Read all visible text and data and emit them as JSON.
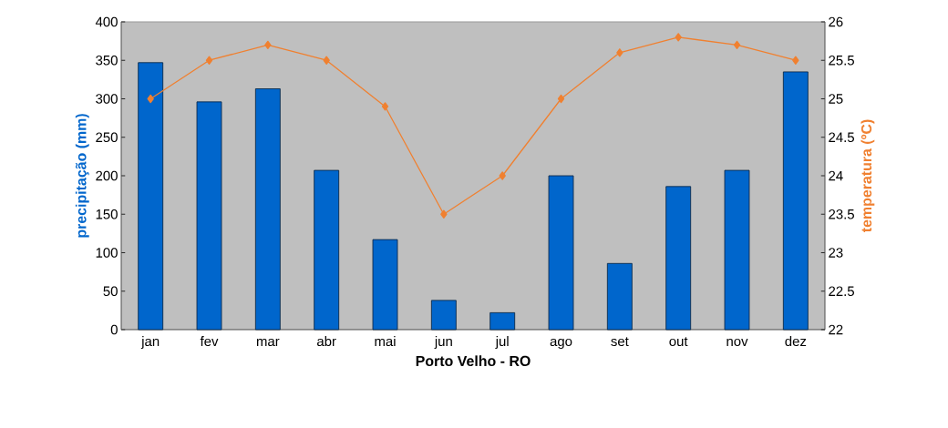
{
  "chart_data": {
    "type": "bar",
    "xlabel": "Porto Velho - RO",
    "ylabel": "precipitação (mm)",
    "y2label": "temperatura (ºC)",
    "categories": [
      "jan",
      "fev",
      "mar",
      "abr",
      "mai",
      "jun",
      "jul",
      "ago",
      "set",
      "out",
      "nov",
      "dez"
    ],
    "series": [
      {
        "color": "#0066cc",
        "values": [
          347,
          296,
          313,
          207,
          117,
          38,
          22,
          200,
          86,
          186,
          207,
          335
        ]
      },
      {
        "type": "line",
        "axis": "y2",
        "color": "#f08030",
        "values": [
          25.0,
          25.5,
          25.7,
          25.5,
          24.9,
          23.5,
          24.0,
          25.0,
          25.6,
          25.8,
          25.7,
          25.5
        ]
      }
    ],
    "ylim": [
      0,
      400
    ],
    "yticks": [
      0,
      50,
      100,
      150,
      200,
      250,
      300,
      350,
      400
    ],
    "y2lim": [
      22,
      26
    ],
    "y2ticks": [
      22,
      22.5,
      23,
      23.5,
      24,
      24.5,
      25,
      25.5,
      26
    ],
    "marker": "diamond"
  }
}
